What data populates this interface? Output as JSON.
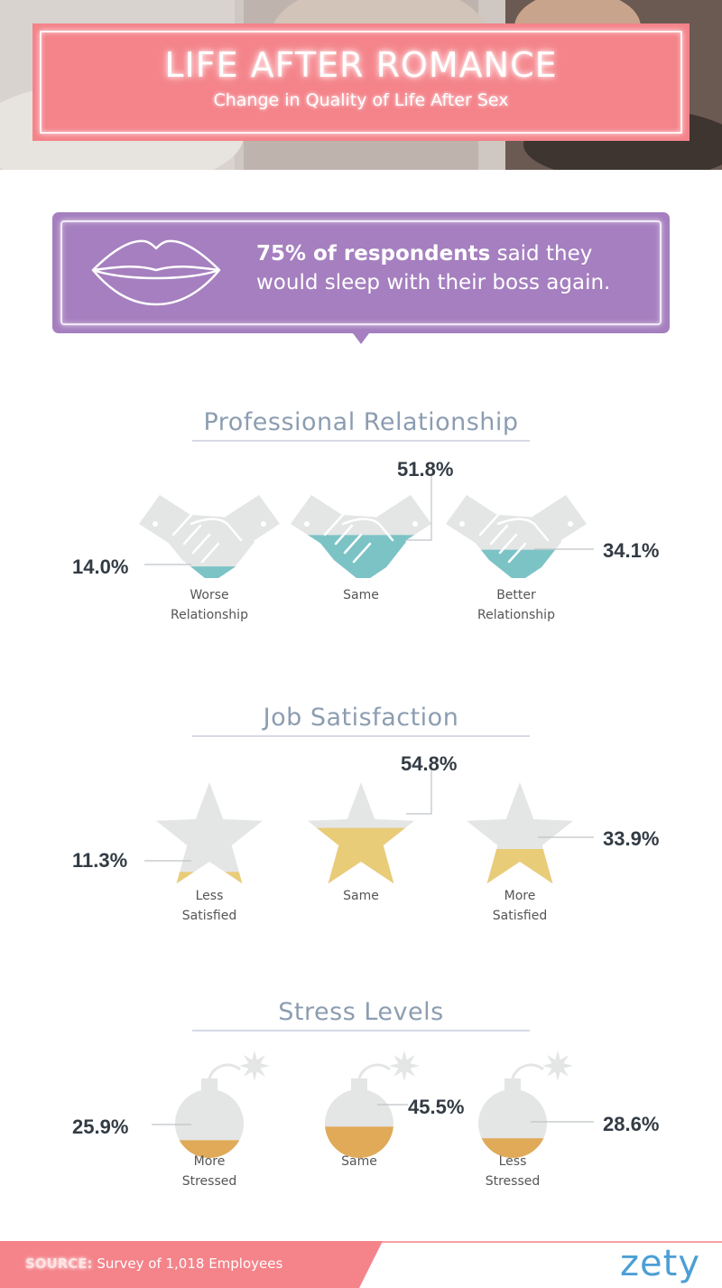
{
  "header": {
    "title": "LIFE AFTER ROMANCE",
    "subtitle": "Change in Quality of Life After Sex"
  },
  "callout": {
    "bold": "75% of respondents",
    "text": " said they would sleep with their boss again."
  },
  "colors": {
    "banner": "#f4838a",
    "callout": "#a57fbf",
    "handshake_fill": "#7cc3c6",
    "star_fill": "#e9cc78",
    "bomb_fill": "#e0aa58",
    "icon_empty": "#e4e5e5",
    "title": "#8c9db1"
  },
  "chart_data": [
    {
      "type": "bar",
      "title": "Professional Relationship",
      "icon": "handshake-icon",
      "categories": [
        "Worse\nRelationship",
        "Same",
        "Better\nRelationship"
      ],
      "values": [
        14.0,
        51.8,
        34.1
      ],
      "labels": [
        "14.0%",
        "51.8%",
        "34.1%"
      ],
      "ylim": [
        0,
        100
      ]
    },
    {
      "type": "bar",
      "title": "Job Satisfaction",
      "icon": "star-icon",
      "categories": [
        "Less\nSatisfied",
        "Same",
        "More\nSatisfied"
      ],
      "values": [
        11.3,
        54.8,
        33.9
      ],
      "labels": [
        "11.3%",
        "54.8%",
        "33.9%"
      ],
      "ylim": [
        0,
        100
      ]
    },
    {
      "type": "bar",
      "title": "Stress Levels",
      "icon": "bomb-icon",
      "categories": [
        "More\nStressed",
        "Same",
        "Less\nStressed"
      ],
      "values": [
        25.9,
        45.5,
        28.6
      ],
      "labels": [
        "25.9%",
        "45.5%",
        "28.6%"
      ],
      "ylim": [
        0,
        100
      ]
    }
  ],
  "footer": {
    "source_key": "SOURCE:",
    "source_text": " Survey of 1,018 Employees",
    "logo": "zety"
  }
}
